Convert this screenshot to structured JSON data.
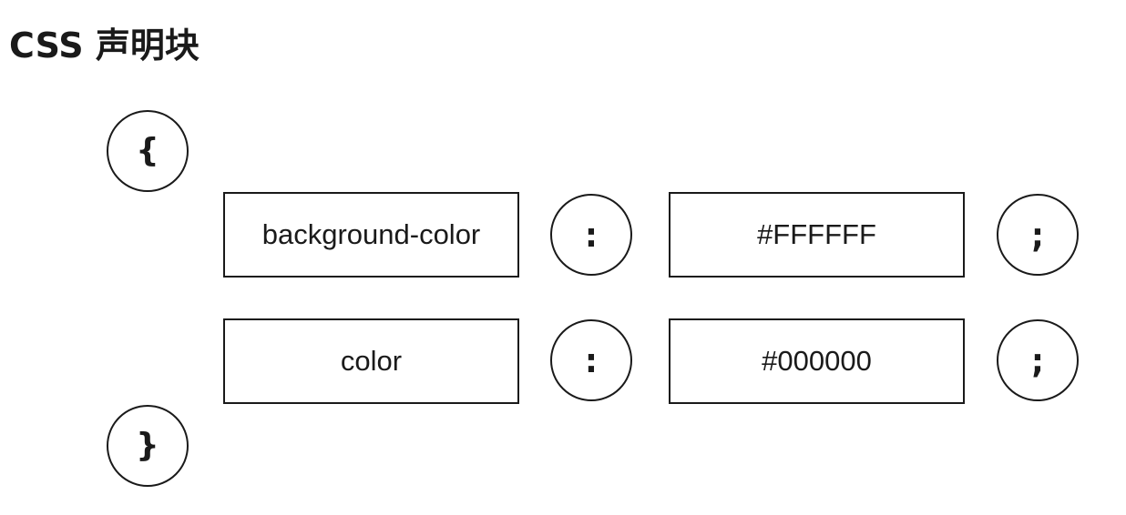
{
  "title": "CSS 声明块",
  "open_brace": "{",
  "close_brace": "}",
  "declarations": [
    {
      "property": "background-color",
      "colon": ":",
      "value": "#FFFFFF",
      "semicolon": ";"
    },
    {
      "property": "color",
      "colon": ":",
      "value": "#000000",
      "semicolon": ";"
    }
  ]
}
